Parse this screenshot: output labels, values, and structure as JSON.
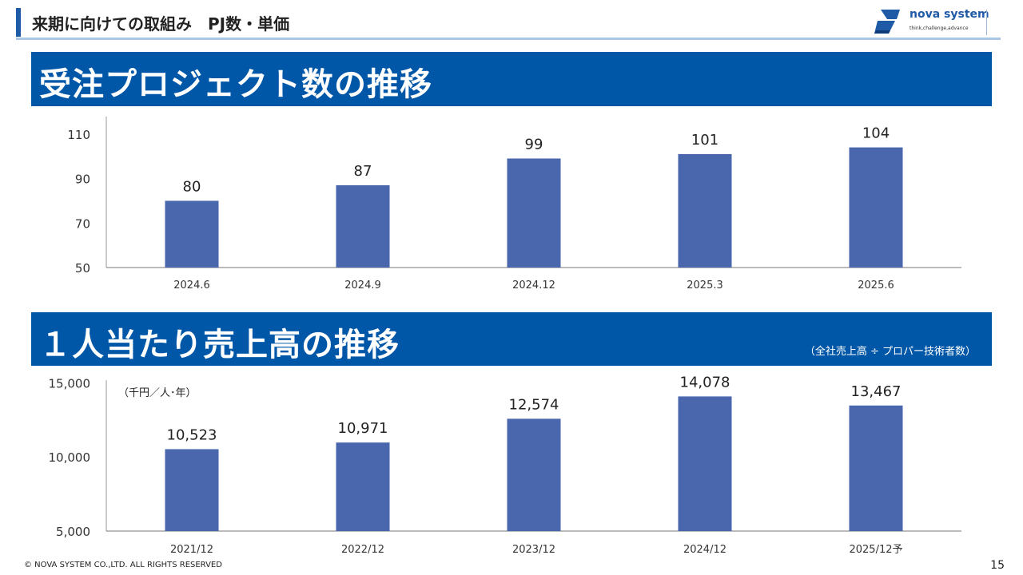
{
  "header": {
    "title": "来期に向けての取組み　PJ数・単価"
  },
  "logo": {
    "name": "nova system",
    "tagline": "think,challenge,advance"
  },
  "section1": {
    "title": "受注プロジェクト数の推移"
  },
  "section2": {
    "title": "１人当たり売上高の推移",
    "note": "（全社売上高 ÷ プロパー技術者数）"
  },
  "colors": {
    "banner": "#0057a8",
    "bar": "#4a66ac",
    "accent": "#1f5aa6"
  },
  "chart_data": [
    {
      "type": "bar",
      "title": "受注プロジェクト数の推移",
      "categories": [
        "2024.6",
        "2024.9",
        "2024.12",
        "2025.3",
        "2025.6"
      ],
      "values": [
        80,
        87,
        99,
        101,
        104
      ],
      "labels": [
        "80",
        "87",
        "99",
        "101",
        "104"
      ],
      "yticks": [
        "50",
        "70",
        "90",
        "110"
      ],
      "ylim": [
        50,
        120
      ],
      "grid": false
    },
    {
      "type": "bar",
      "title": "１人当たり売上高の推移",
      "unit": "（千円／人･年）",
      "categories": [
        "2021/12",
        "2022/12",
        "2023/12",
        "2024/12",
        "2025/12予"
      ],
      "values": [
        10523,
        10971,
        12574,
        14078,
        13467
      ],
      "labels": [
        "10,523",
        "10,971",
        "12,574",
        "14,078",
        "13,467"
      ],
      "yticks": [
        "5,000",
        "10,000",
        "15,000"
      ],
      "ylim": [
        5000,
        15500
      ],
      "grid": false
    }
  ],
  "footer": {
    "copyright": "© NOVA SYSTEM CO.,LTD. ALL RIGHTS RESERVED",
    "page": "15"
  }
}
